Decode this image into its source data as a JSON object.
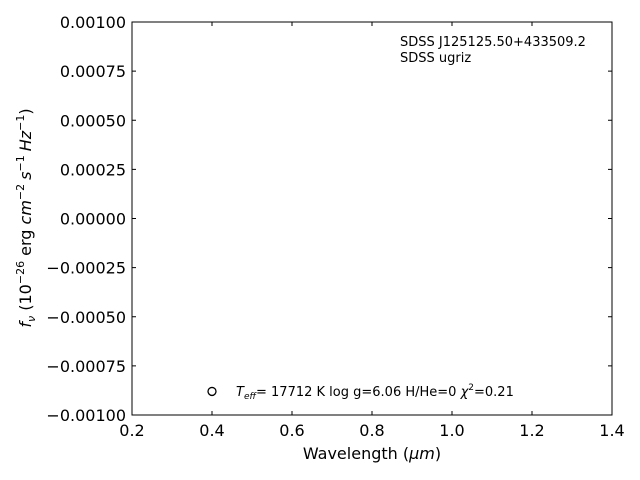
{
  "chart_data": {
    "type": "scatter",
    "title": "",
    "xlabel_main": "Wavelength (",
    "xlabel_unit": "μm",
    "xlabel_close": ")",
    "ylabel_fnu": "f",
    "ylabel_nu": "ν",
    "ylabel_open": " (10",
    "ylabel_exp1": "−26",
    "ylabel_erg": " erg ",
    "ylabel_cm": "cm",
    "ylabel_exp2": "−2",
    "ylabel_s": "s",
    "ylabel_exp3": "−1",
    "ylabel_hz": "Hz",
    "ylabel_exp4": "−1",
    "ylabel_close": ")",
    "xlim": [
      0.2,
      1.4
    ],
    "ylim": [
      -0.001,
      0.001
    ],
    "xticks": [
      0.2,
      0.4,
      0.6,
      0.8,
      1.0,
      1.2,
      1.4
    ],
    "xtick_labels": [
      "0.2",
      "0.4",
      "0.6",
      "0.8",
      "1.0",
      "1.2",
      "1.4"
    ],
    "yticks": [
      0.001,
      0.00075,
      0.0005,
      0.00025,
      0.0,
      -0.00025,
      -0.0005,
      -0.00075,
      -0.001
    ],
    "ytick_labels": [
      "0.00100",
      "0.00075",
      "0.00050",
      "0.00025",
      "0.00000",
      "−0.00025",
      "−0.00050",
      "−0.00075",
      "−0.00100"
    ],
    "grid": false,
    "object_name": "SDSS J125125.50+433509.2",
    "photometry": "SDSS ugriz",
    "legend": {
      "marker": "open-circle",
      "x": 0.4,
      "y": -0.00088,
      "teff_T": "T",
      "teff_sub": "eff",
      "teff_value": "= 17712 K  log g=6.06  H/He=0  ",
      "chi": "χ",
      "chi_sup": "2",
      "chi_value": "=0.21"
    },
    "series": []
  }
}
